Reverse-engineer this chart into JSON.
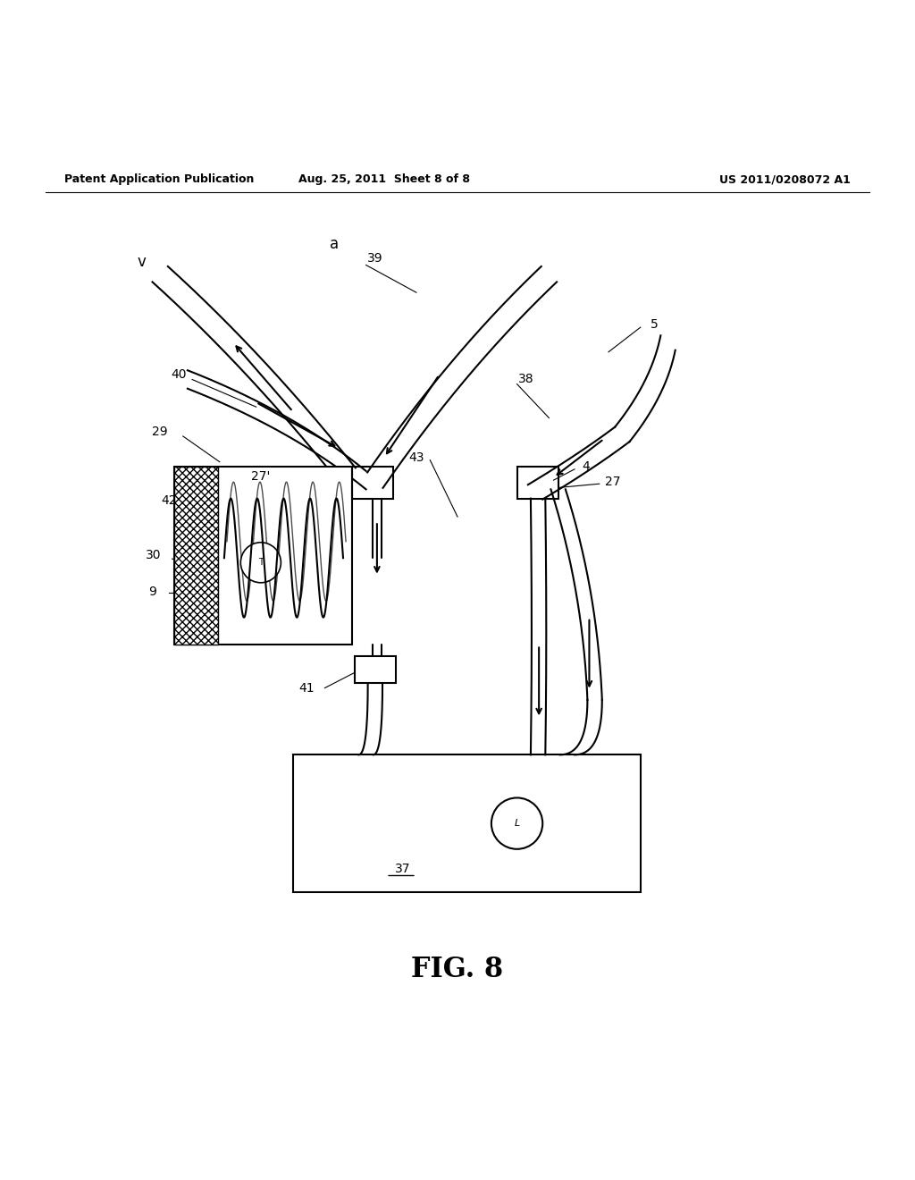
{
  "bg_color": "#ffffff",
  "line_color": "#000000",
  "header_left": "Patent Application Publication",
  "header_mid": "Aug. 25, 2011  Sheet 8 of 8",
  "header_right": "US 2011/0208072 A1",
  "fig_label": "FIG. 8"
}
